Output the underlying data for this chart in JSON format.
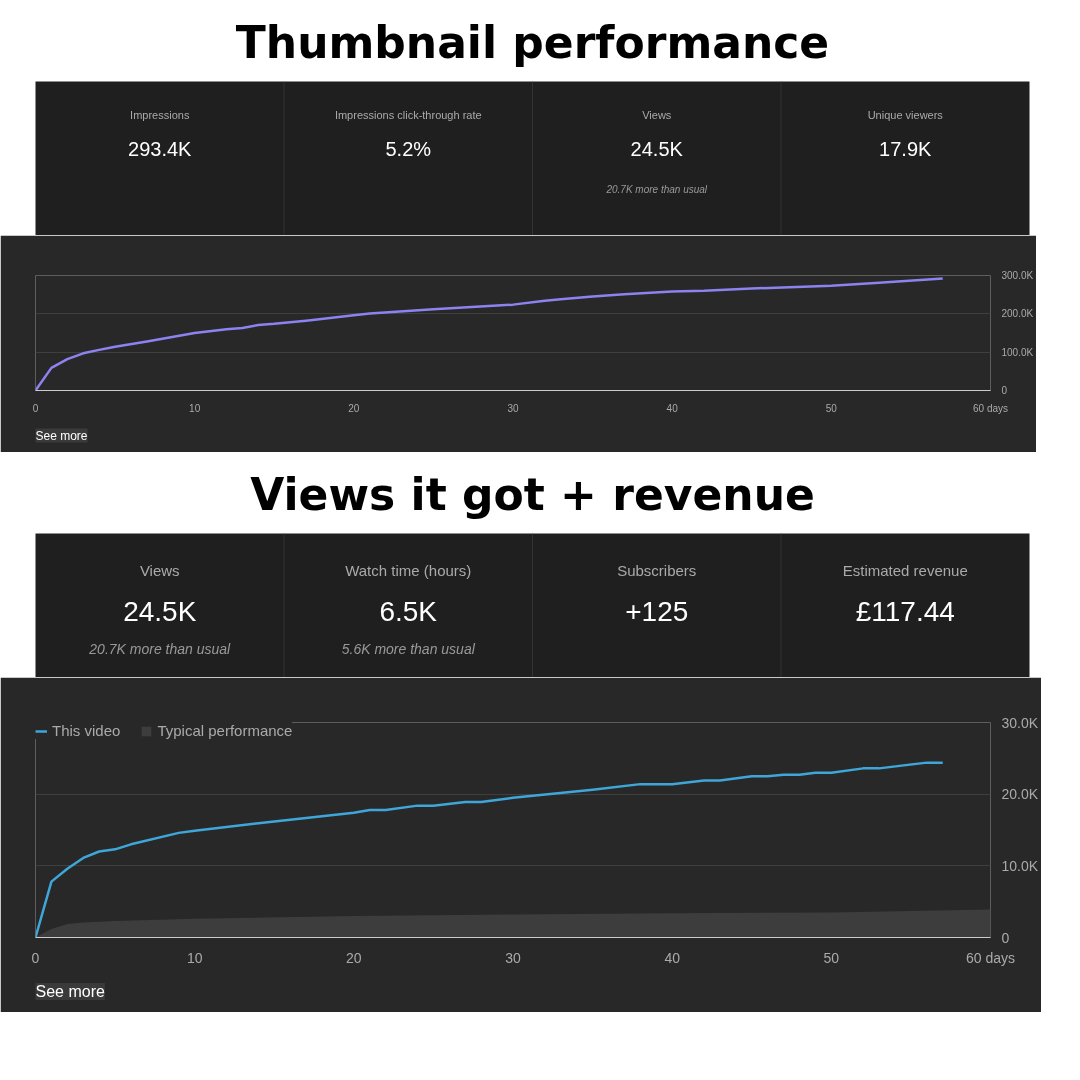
{
  "chart_data": [
    {
      "type": "other",
      "title": "Thumbnail performance",
      "categories": [
        "Impressions",
        "Impressions click-through rate",
        "Views",
        "Unique viewers"
      ],
      "value_labels": [
        "293.4K",
        "5.2%",
        "24.5K",
        "17.9K"
      ],
      "annotations": [
        {
          "text": "20.7K more than usual",
          "x": "Views"
        }
      ]
    },
    {
      "type": "line",
      "x": [
        0,
        1,
        2,
        3,
        4,
        5,
        7,
        10,
        12,
        13,
        14,
        15,
        17,
        20,
        21,
        25,
        30,
        32,
        33,
        35,
        37,
        40,
        42,
        45,
        50,
        53,
        57
      ],
      "series": [
        {
          "color": "#8c82f0",
          "values": [
            0,
            59000,
            82000,
            97000,
            106000,
            114000,
            128000,
            150000,
            160000,
            163000,
            171000,
            174000,
            182000,
            196000,
            201000,
            212000,
            224000,
            234000,
            238000,
            245000,
            251000,
            258000,
            260000,
            266000,
            273000,
            281000,
            292000
          ]
        }
      ],
      "xlim": [
        0,
        60
      ],
      "ylim": [
        0,
        300000
      ],
      "xticks": [
        0,
        10,
        20,
        30,
        40,
        50,
        {
          "value": 60,
          "label": "60 days"
        }
      ],
      "yticks": [
        0,
        {
          "value": 100000,
          "label": "100.0K"
        },
        {
          "value": 200000,
          "label": "200.0K"
        },
        {
          "value": 300000,
          "label": "300.0K"
        }
      ],
      "grid": "y",
      "annotations": [
        "See more"
      ]
    },
    {
      "type": "other",
      "title": "Views it got + revenue",
      "categories": [
        "Views",
        "Watch time (hours)",
        "Subscribers",
        "Estimated revenue"
      ],
      "value_labels": [
        "24.5K",
        "6.5K",
        "+125",
        "£117.44"
      ],
      "annotations": [
        {
          "text": "20.7K more than usual",
          "x": "Views"
        },
        {
          "text": "5.6K more than usual",
          "x": "Watch time (hours)"
        }
      ]
    },
    {
      "type": "line",
      "xlim": [
        0,
        60
      ],
      "ylim": [
        0,
        30000
      ],
      "xticks": [
        0,
        10,
        20,
        30,
        40,
        50,
        {
          "value": 60,
          "label": "60 days"
        }
      ],
      "yticks": [
        0,
        {
          "value": 10000,
          "label": "10.0K"
        },
        {
          "value": 20000,
          "label": "20.0K"
        },
        {
          "value": 30000,
          "label": "30.0K"
        }
      ],
      "grid": "y",
      "legend": "top left",
      "annotations": [
        "See more"
      ],
      "series": [
        {
          "name": "This video",
          "color": "#3ea6d8",
          "x": [
            0,
            1,
            2,
            3,
            4,
            5,
            6,
            9,
            10,
            15,
            20,
            21,
            22,
            24,
            25,
            27,
            28,
            30,
            35,
            38,
            40,
            42,
            43,
            45,
            46,
            47,
            48,
            49,
            50,
            52,
            53,
            56,
            57
          ],
          "values": [
            0,
            7800,
            9600,
            11100,
            12000,
            12300,
            13000,
            14600,
            14900,
            16200,
            17400,
            17800,
            17800,
            18400,
            18400,
            18900,
            18900,
            19500,
            20600,
            21400,
            21400,
            21900,
            21900,
            22500,
            22500,
            22700,
            22700,
            23000,
            23000,
            23600,
            23600,
            24400,
            24400
          ]
        },
        {
          "name": "Typical performance",
          "type": "area",
          "color": "#3d3d3d",
          "x": [
            0,
            1,
            2,
            3,
            5,
            10,
            20,
            30,
            40,
            50,
            55,
            60
          ],
          "values": [
            0,
            1200,
            1900,
            2100,
            2300,
            2600,
            3000,
            3200,
            3400,
            3500,
            3700,
            3900
          ]
        }
      ]
    }
  ]
}
